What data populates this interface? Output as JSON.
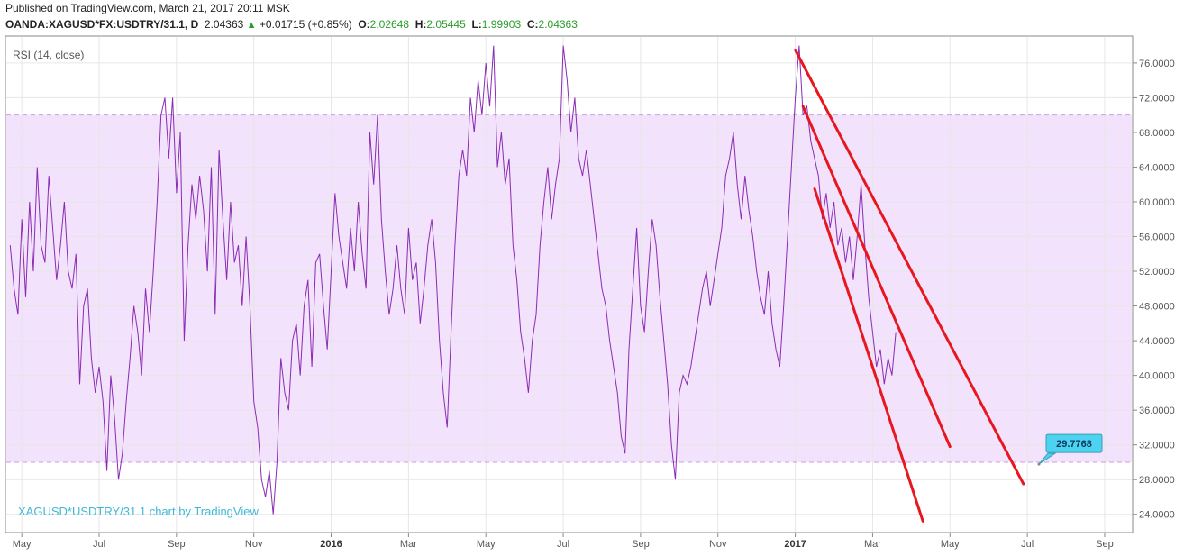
{
  "header": {
    "published": "Published on TradingView.com, March 21, 2017 20:11 MSK",
    "symbol": "OANDA:XAGUSD*FX:USDTRY/31.1, D",
    "last": "2.04363",
    "arrow": "▲",
    "change": "+0.01715 (+0.85%)",
    "o_label": "O:",
    "o_val": "2.02648",
    "h_label": "H:",
    "h_val": "2.05445",
    "l_label": "L:",
    "l_val": "1.99903",
    "c_label": "C:",
    "c_val": "2.04363"
  },
  "indicator_label": "RSI (14, close)",
  "watermark": "XAGUSD*USDTRY/31.1 chart by TradingView",
  "colors": {
    "rsi_line": "#8a2bb5",
    "band_fill": "#f3e2fb",
    "band_line": "#c9a0dc",
    "trend_line": "#e8171f",
    "badge": "#4dd3ef",
    "positive": "#2a9d2a"
  },
  "chart_data": {
    "type": "line",
    "indicator": "RSI",
    "ylim": [
      22,
      79
    ],
    "y_ticks": [
      "76.0000",
      "72.0000",
      "68.0000",
      "64.0000",
      "60.0000",
      "56.0000",
      "52.0000",
      "48.0000",
      "44.0000",
      "40.0000",
      "36.0000",
      "32.0000",
      "28.0000",
      "24.0000"
    ],
    "y_tick_values": [
      76,
      72,
      68,
      64,
      60,
      56,
      52,
      48,
      44,
      40,
      36,
      32,
      28,
      24
    ],
    "band": {
      "upper": 70,
      "lower": 30
    },
    "x_ticks": [
      {
        "label": "May",
        "x": 0.3
      },
      {
        "label": "Jul",
        "x": 2.3
      },
      {
        "label": "Sep",
        "x": 4.3
      },
      {
        "label": "Nov",
        "x": 6.3
      },
      {
        "label": "2016",
        "x": 8.3,
        "bold": true
      },
      {
        "label": "Mar",
        "x": 10.3
      },
      {
        "label": "May",
        "x": 12.3
      },
      {
        "label": "Jul",
        "x": 14.3
      },
      {
        "label": "Sep",
        "x": 16.3
      },
      {
        "label": "Nov",
        "x": 18.3
      },
      {
        "label": "2017",
        "x": 20.3,
        "bold": true
      },
      {
        "label": "Mar",
        "x": 22.3
      },
      {
        "label": "May",
        "x": 24.3
      },
      {
        "label": "Jul",
        "x": 26.3
      },
      {
        "label": "Sep",
        "x": 28.3
      }
    ],
    "x_unit": "months since Apr 2015 (approx.)",
    "series": [
      {
        "name": "RSI (14, close)",
        "points": [
          [
            0,
            55
          ],
          [
            0.1,
            50
          ],
          [
            0.2,
            47
          ],
          [
            0.3,
            58
          ],
          [
            0.4,
            49
          ],
          [
            0.5,
            60
          ],
          [
            0.6,
            52
          ],
          [
            0.7,
            64
          ],
          [
            0.8,
            55
          ],
          [
            0.9,
            53
          ],
          [
            1.0,
            63
          ],
          [
            1.1,
            57
          ],
          [
            1.2,
            51
          ],
          [
            1.3,
            55
          ],
          [
            1.4,
            60
          ],
          [
            1.5,
            52
          ],
          [
            1.6,
            50
          ],
          [
            1.7,
            54
          ],
          [
            1.8,
            39
          ],
          [
            1.9,
            48
          ],
          [
            2.0,
            50
          ],
          [
            2.1,
            42
          ],
          [
            2.2,
            38
          ],
          [
            2.3,
            41
          ],
          [
            2.4,
            37
          ],
          [
            2.5,
            29
          ],
          [
            2.6,
            40
          ],
          [
            2.7,
            35
          ],
          [
            2.8,
            28
          ],
          [
            2.9,
            31
          ],
          [
            3.0,
            37
          ],
          [
            3.1,
            42
          ],
          [
            3.2,
            48
          ],
          [
            3.3,
            45
          ],
          [
            3.4,
            40
          ],
          [
            3.5,
            50
          ],
          [
            3.6,
            45
          ],
          [
            3.7,
            52
          ],
          [
            3.8,
            60
          ],
          [
            3.9,
            70
          ],
          [
            4.0,
            72
          ],
          [
            4.1,
            65
          ],
          [
            4.2,
            72
          ],
          [
            4.3,
            61
          ],
          [
            4.4,
            68
          ],
          [
            4.5,
            44
          ],
          [
            4.6,
            55
          ],
          [
            4.7,
            62
          ],
          [
            4.8,
            58
          ],
          [
            4.9,
            63
          ],
          [
            5.0,
            59
          ],
          [
            5.1,
            52
          ],
          [
            5.2,
            64
          ],
          [
            5.3,
            47
          ],
          [
            5.4,
            66
          ],
          [
            5.5,
            58
          ],
          [
            5.6,
            51
          ],
          [
            5.7,
            60
          ],
          [
            5.8,
            53
          ],
          [
            5.9,
            55
          ],
          [
            6.0,
            48
          ],
          [
            6.1,
            56
          ],
          [
            6.2,
            48
          ],
          [
            6.3,
            37
          ],
          [
            6.4,
            34
          ],
          [
            6.5,
            28
          ],
          [
            6.6,
            26
          ],
          [
            6.7,
            29
          ],
          [
            6.8,
            24
          ],
          [
            6.9,
            30
          ],
          [
            7.0,
            42
          ],
          [
            7.1,
            38
          ],
          [
            7.2,
            36
          ],
          [
            7.3,
            44
          ],
          [
            7.4,
            46
          ],
          [
            7.5,
            40
          ],
          [
            7.6,
            48
          ],
          [
            7.7,
            51
          ],
          [
            7.8,
            41
          ],
          [
            7.9,
            53
          ],
          [
            8.0,
            54
          ],
          [
            8.1,
            48
          ],
          [
            8.2,
            43
          ],
          [
            8.3,
            52
          ],
          [
            8.4,
            61
          ],
          [
            8.5,
            56
          ],
          [
            8.6,
            53
          ],
          [
            8.7,
            50
          ],
          [
            8.8,
            57
          ],
          [
            8.9,
            52
          ],
          [
            9.0,
            60
          ],
          [
            9.1,
            54
          ],
          [
            9.2,
            50
          ],
          [
            9.3,
            68
          ],
          [
            9.4,
            62
          ],
          [
            9.5,
            70
          ],
          [
            9.6,
            58
          ],
          [
            9.7,
            52
          ],
          [
            9.8,
            47
          ],
          [
            9.9,
            50
          ],
          [
            10.0,
            55
          ],
          [
            10.1,
            50
          ],
          [
            10.2,
            47
          ],
          [
            10.3,
            57
          ],
          [
            10.4,
            51
          ],
          [
            10.5,
            53
          ],
          [
            10.6,
            46
          ],
          [
            10.7,
            50
          ],
          [
            10.8,
            55
          ],
          [
            10.9,
            58
          ],
          [
            11.0,
            53
          ],
          [
            11.1,
            44
          ],
          [
            11.2,
            38
          ],
          [
            11.3,
            34
          ],
          [
            11.4,
            45
          ],
          [
            11.5,
            55
          ],
          [
            11.6,
            63
          ],
          [
            11.7,
            66
          ],
          [
            11.8,
            63
          ],
          [
            11.9,
            72
          ],
          [
            12.0,
            68
          ],
          [
            12.1,
            74
          ],
          [
            12.2,
            70
          ],
          [
            12.3,
            76
          ],
          [
            12.4,
            71
          ],
          [
            12.5,
            78
          ],
          [
            12.6,
            64
          ],
          [
            12.7,
            68
          ],
          [
            12.8,
            62
          ],
          [
            12.9,
            65
          ],
          [
            13.0,
            55
          ],
          [
            13.1,
            51
          ],
          [
            13.2,
            45
          ],
          [
            13.3,
            42
          ],
          [
            13.4,
            38
          ],
          [
            13.5,
            44
          ],
          [
            13.6,
            47
          ],
          [
            13.7,
            55
          ],
          [
            13.8,
            60
          ],
          [
            13.9,
            64
          ],
          [
            14.0,
            58
          ],
          [
            14.1,
            62
          ],
          [
            14.2,
            65
          ],
          [
            14.3,
            78
          ],
          [
            14.4,
            74
          ],
          [
            14.5,
            68
          ],
          [
            14.6,
            72
          ],
          [
            14.7,
            65
          ],
          [
            14.8,
            63
          ],
          [
            14.9,
            66
          ],
          [
            15.0,
            62
          ],
          [
            15.1,
            58
          ],
          [
            15.2,
            54
          ],
          [
            15.3,
            50
          ],
          [
            15.4,
            48
          ],
          [
            15.5,
            44
          ],
          [
            15.6,
            41
          ],
          [
            15.7,
            38
          ],
          [
            15.8,
            33
          ],
          [
            15.9,
            31
          ],
          [
            16.0,
            43
          ],
          [
            16.1,
            50
          ],
          [
            16.2,
            57
          ],
          [
            16.3,
            48
          ],
          [
            16.4,
            45
          ],
          [
            16.5,
            52
          ],
          [
            16.6,
            58
          ],
          [
            16.7,
            55
          ],
          [
            16.8,
            49
          ],
          [
            16.9,
            44
          ],
          [
            17.0,
            39
          ],
          [
            17.1,
            32
          ],
          [
            17.2,
            28
          ],
          [
            17.3,
            38
          ],
          [
            17.4,
            40
          ],
          [
            17.5,
            39
          ],
          [
            17.6,
            41
          ],
          [
            17.7,
            44
          ],
          [
            17.8,
            47
          ],
          [
            17.9,
            50
          ],
          [
            18.0,
            52
          ],
          [
            18.1,
            48
          ],
          [
            18.2,
            51
          ],
          [
            18.3,
            54
          ],
          [
            18.4,
            57
          ],
          [
            18.5,
            63
          ],
          [
            18.6,
            65
          ],
          [
            18.7,
            68
          ],
          [
            18.8,
            62
          ],
          [
            18.9,
            58
          ],
          [
            19.0,
            63
          ],
          [
            19.1,
            59
          ],
          [
            19.2,
            56
          ],
          [
            19.3,
            52
          ],
          [
            19.4,
            49
          ],
          [
            19.5,
            47
          ],
          [
            19.6,
            52
          ],
          [
            19.7,
            46
          ],
          [
            19.8,
            43
          ],
          [
            19.9,
            41
          ],
          [
            20.0,
            48
          ],
          [
            20.1,
            56
          ],
          [
            20.2,
            64
          ],
          [
            20.3,
            72
          ],
          [
            20.4,
            78
          ],
          [
            20.5,
            70
          ],
          [
            20.6,
            71
          ],
          [
            20.7,
            67
          ],
          [
            20.8,
            65
          ],
          [
            20.9,
            63
          ],
          [
            21.0,
            58
          ],
          [
            21.1,
            61
          ],
          [
            21.2,
            57
          ],
          [
            21.3,
            60
          ],
          [
            21.4,
            55
          ],
          [
            21.5,
            57
          ],
          [
            21.6,
            53
          ],
          [
            21.7,
            56
          ],
          [
            21.8,
            51
          ],
          [
            21.9,
            56
          ],
          [
            22.0,
            62
          ],
          [
            22.1,
            55
          ],
          [
            22.2,
            49
          ],
          [
            22.3,
            45
          ],
          [
            22.4,
            41
          ],
          [
            22.5,
            43
          ],
          [
            22.6,
            39
          ],
          [
            22.7,
            42
          ],
          [
            22.8,
            40
          ],
          [
            22.9,
            45
          ]
        ]
      }
    ],
    "trend_lines": [
      {
        "points": [
          [
            20.3,
            77.5
          ],
          [
            26.2,
            27.5
          ]
        ]
      },
      {
        "points": [
          [
            20.5,
            71.0
          ],
          [
            24.3,
            31.8
          ]
        ]
      },
      {
        "points": [
          [
            20.8,
            61.5
          ],
          [
            23.6,
            23.2
          ]
        ]
      }
    ],
    "badge": {
      "value": "29.7768",
      "x": 26.6,
      "y": 29.78
    }
  }
}
